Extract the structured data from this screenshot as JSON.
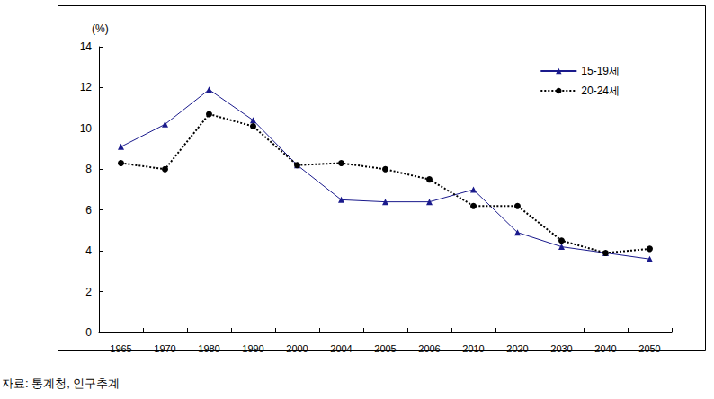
{
  "chart_data": {
    "type": "line",
    "y_label": "(%)",
    "source": "자료: 통계청, 인구추계",
    "categories": [
      "1965",
      "1970",
      "1980",
      "1990",
      "2000",
      "2004",
      "2005",
      "2006",
      "2010",
      "2020",
      "2030",
      "2040",
      "2050"
    ],
    "series": [
      {
        "name": "15-19세",
        "color": "#1a1a8c",
        "marker": "triangle",
        "line_style": "solid",
        "values": [
          9.1,
          10.2,
          11.9,
          10.4,
          8.2,
          6.5,
          6.4,
          6.4,
          7.0,
          4.9,
          4.2,
          3.9,
          3.6
        ]
      },
      {
        "name": "20-24세",
        "color": "#000000",
        "marker": "circle",
        "line_style": "dotted",
        "values": [
          8.3,
          8.0,
          10.7,
          10.1,
          8.2,
          8.3,
          8.0,
          7.5,
          6.2,
          6.2,
          4.5,
          3.9,
          4.1
        ]
      }
    ],
    "ylim": [
      0,
      14
    ],
    "yticks": [
      0,
      2,
      4,
      6,
      8,
      10,
      12,
      14
    ],
    "grid": false,
    "legend": "upper right"
  }
}
